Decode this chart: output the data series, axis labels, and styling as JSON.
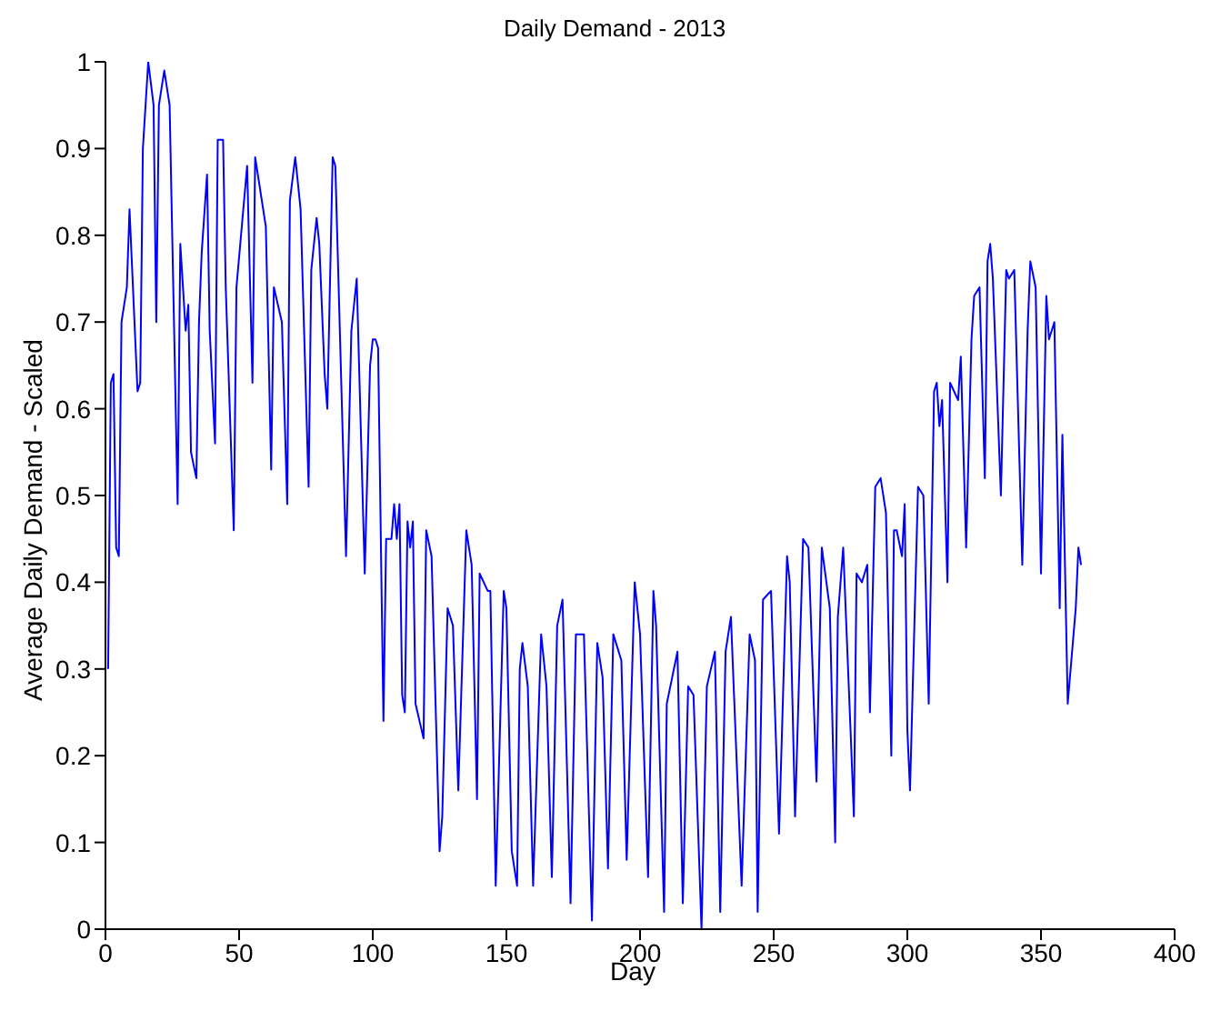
{
  "chart_data": {
    "type": "line",
    "title": "Daily Demand - 2013",
    "xlabel": "Day",
    "ylabel": "Average Daily Demand - Scaled",
    "xlim": [
      0,
      400
    ],
    "xticks": [
      0,
      50,
      100,
      150,
      200,
      250,
      300,
      350,
      400
    ],
    "ylim": [
      0,
      1
    ],
    "yticks": [
      0,
      0.1,
      0.2,
      0.3,
      0.4,
      0.5,
      0.6,
      0.7,
      0.8,
      0.9,
      1
    ],
    "grid": false,
    "legend": false,
    "marker": "none",
    "line_style": "solid",
    "series": [
      {
        "color": "#0000ff",
        "x": [
          1,
          2,
          3,
          4,
          5,
          6,
          8,
          9,
          12,
          13,
          14,
          16,
          18,
          19,
          20,
          22,
          24,
          27,
          28,
          30,
          31,
          32,
          34,
          35,
          36,
          38,
          39,
          41,
          42,
          44,
          45,
          48,
          49,
          53,
          55,
          56,
          60,
          62,
          63,
          66,
          68,
          69,
          71,
          73,
          76,
          77,
          79,
          80,
          82,
          83,
          85,
          86,
          90,
          92,
          94,
          97,
          99,
          100,
          101,
          102,
          104,
          105,
          107,
          108,
          109,
          110,
          111,
          112,
          113,
          114,
          115,
          116,
          119,
          120,
          122,
          125,
          126,
          128,
          130,
          132,
          135,
          137,
          139,
          140,
          143,
          144,
          146,
          149,
          150,
          152,
          154,
          155,
          156,
          158,
          160,
          163,
          164,
          165,
          167,
          169,
          171,
          174,
          176,
          179,
          182,
          184,
          186,
          188,
          190,
          193,
          195,
          198,
          200,
          203,
          205,
          206,
          209,
          210,
          214,
          216,
          218,
          220,
          223,
          225,
          228,
          230,
          232,
          234,
          238,
          241,
          243,
          244,
          246,
          249,
          252,
          255,
          256,
          258,
          261,
          263,
          266,
          268,
          271,
          273,
          274,
          276,
          279,
          280,
          281,
          283,
          285,
          286,
          288,
          290,
          292,
          294,
          295,
          296,
          298,
          299,
          300,
          301,
          304,
          306,
          308,
          310,
          311,
          312,
          313,
          315,
          316,
          319,
          320,
          322,
          324,
          325,
          327,
          329,
          330,
          331,
          332,
          335,
          337,
          338,
          340,
          343,
          345,
          346,
          348,
          350,
          352,
          353,
          355,
          357,
          358,
          360,
          363,
          364,
          365
        ],
        "values": [
          0.3,
          0.63,
          0.64,
          0.44,
          0.43,
          0.7,
          0.74,
          0.83,
          0.62,
          0.63,
          0.9,
          1.0,
          0.95,
          0.7,
          0.95,
          0.99,
          0.95,
          0.49,
          0.79,
          0.69,
          0.72,
          0.55,
          0.52,
          0.7,
          0.78,
          0.87,
          0.69,
          0.56,
          0.91,
          0.91,
          0.74,
          0.46,
          0.74,
          0.88,
          0.63,
          0.89,
          0.81,
          0.53,
          0.74,
          0.7,
          0.49,
          0.84,
          0.89,
          0.83,
          0.51,
          0.76,
          0.82,
          0.79,
          0.64,
          0.6,
          0.89,
          0.88,
          0.43,
          0.69,
          0.75,
          0.41,
          0.65,
          0.68,
          0.68,
          0.67,
          0.24,
          0.45,
          0.45,
          0.49,
          0.45,
          0.49,
          0.27,
          0.25,
          0.47,
          0.44,
          0.47,
          0.26,
          0.22,
          0.46,
          0.43,
          0.09,
          0.13,
          0.37,
          0.35,
          0.16,
          0.46,
          0.42,
          0.15,
          0.41,
          0.39,
          0.39,
          0.05,
          0.39,
          0.37,
          0.09,
          0.05,
          0.3,
          0.33,
          0.28,
          0.05,
          0.34,
          0.31,
          0.28,
          0.06,
          0.35,
          0.38,
          0.03,
          0.34,
          0.34,
          0.01,
          0.33,
          0.29,
          0.07,
          0.34,
          0.31,
          0.08,
          0.4,
          0.34,
          0.06,
          0.39,
          0.35,
          0.02,
          0.26,
          0.32,
          0.03,
          0.28,
          0.27,
          0.0,
          0.28,
          0.32,
          0.02,
          0.32,
          0.36,
          0.05,
          0.34,
          0.31,
          0.02,
          0.38,
          0.39,
          0.11,
          0.43,
          0.4,
          0.13,
          0.45,
          0.44,
          0.17,
          0.44,
          0.37,
          0.1,
          0.36,
          0.44,
          0.21,
          0.13,
          0.41,
          0.4,
          0.42,
          0.25,
          0.51,
          0.52,
          0.48,
          0.2,
          0.46,
          0.46,
          0.43,
          0.49,
          0.23,
          0.16,
          0.51,
          0.5,
          0.26,
          0.62,
          0.63,
          0.58,
          0.61,
          0.4,
          0.63,
          0.61,
          0.66,
          0.44,
          0.68,
          0.73,
          0.74,
          0.52,
          0.77,
          0.79,
          0.75,
          0.5,
          0.76,
          0.75,
          0.76,
          0.42,
          0.69,
          0.77,
          0.74,
          0.41,
          0.73,
          0.68,
          0.7,
          0.37,
          0.57,
          0.26,
          0.37,
          0.44,
          0.42
        ]
      }
    ]
  }
}
